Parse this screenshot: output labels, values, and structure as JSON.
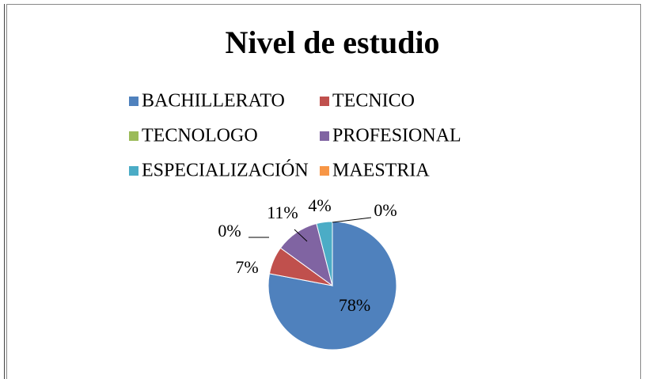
{
  "chart_data": {
    "type": "pie",
    "title": "Nivel de estudio",
    "categories": [
      "BACHILLERATO",
      "TECNICO",
      "TECNOLOGO",
      "PROFESIONAL",
      "ESPECIALIZACIÓN",
      "MAESTRIA"
    ],
    "values": [
      78,
      7,
      0,
      11,
      4,
      0
    ],
    "value_labels": [
      "78%",
      "7%",
      "0%",
      "11%",
      "4%",
      "0%"
    ],
    "colors": [
      "#4f81bd",
      "#c0504d",
      "#9bbb59",
      "#8064a2",
      "#4bacc6",
      "#f79646"
    ],
    "legend": "top"
  }
}
